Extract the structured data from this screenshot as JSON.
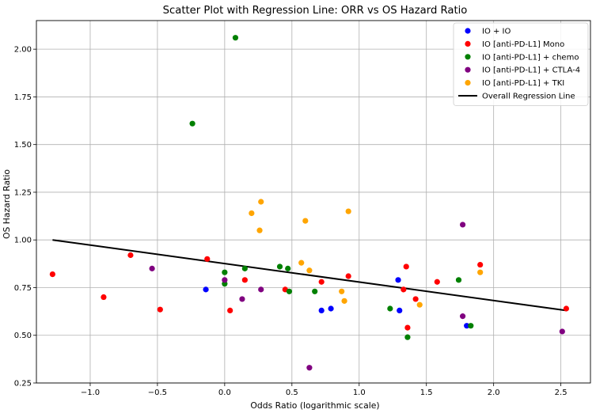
{
  "chart_data": {
    "type": "scatter",
    "title": "Scatter Plot with Regression Line: ORR vs OS Hazard Ratio",
    "xlabel": "Odds Ratio (logarithmic scale)",
    "ylabel": "OS Hazard Ratio",
    "xlim": [
      -1.4,
      2.72
    ],
    "ylim": [
      0.25,
      2.15
    ],
    "grid": true,
    "legend_position": "top-right",
    "xticks": [
      -1.0,
      -0.5,
      0.0,
      0.5,
      1.0,
      1.5,
      2.0,
      2.5
    ],
    "xtick_labels": [
      "−1.0",
      "−0.5",
      "0.0",
      "0.5",
      "1.0",
      "1.5",
      "2.0",
      "2.5"
    ],
    "yticks": [
      0.25,
      0.5,
      0.75,
      1.0,
      1.25,
      1.5,
      1.75,
      2.0
    ],
    "ytick_labels": [
      "0.25",
      "0.50",
      "0.75",
      "1.00",
      "1.25",
      "1.50",
      "1.75",
      "2.00"
    ],
    "series": [
      {
        "name": "IO + IO",
        "color": "#0000ff",
        "points": [
          [
            -0.14,
            0.74
          ],
          [
            0.72,
            0.63
          ],
          [
            0.79,
            0.64
          ],
          [
            1.29,
            0.79
          ],
          [
            1.3,
            0.63
          ],
          [
            1.8,
            0.55
          ]
        ]
      },
      {
        "name": "IO [anti-PD-L1] Mono",
        "color": "#ff0000",
        "points": [
          [
            -1.28,
            0.82
          ],
          [
            -0.9,
            0.7
          ],
          [
            -0.7,
            0.92
          ],
          [
            -0.48,
            0.635
          ],
          [
            -0.13,
            0.9
          ],
          [
            0.04,
            0.63
          ],
          [
            0.15,
            0.79
          ],
          [
            0.45,
            0.74
          ],
          [
            0.72,
            0.78
          ],
          [
            0.92,
            0.81
          ],
          [
            1.33,
            0.74
          ],
          [
            1.35,
            0.86
          ],
          [
            1.36,
            0.54
          ],
          [
            1.42,
            0.69
          ],
          [
            1.58,
            0.78
          ],
          [
            1.9,
            0.87
          ],
          [
            2.54,
            0.64
          ]
        ]
      },
      {
        "name": "IO [anti-PD-L1] + chemo",
        "color": "#008000",
        "points": [
          [
            0.08,
            2.06
          ],
          [
            -0.24,
            1.61
          ],
          [
            0.0,
            0.83
          ],
          [
            0.0,
            0.77
          ],
          [
            0.15,
            0.85
          ],
          [
            0.41,
            0.86
          ],
          [
            0.47,
            0.85
          ],
          [
            0.48,
            0.73
          ],
          [
            0.67,
            0.73
          ],
          [
            1.23,
            0.64
          ],
          [
            1.36,
            0.49
          ],
          [
            1.74,
            0.79
          ],
          [
            1.83,
            0.55
          ]
        ]
      },
      {
        "name": "IO [anti-PD-L1] + CTLA-4",
        "color": "#800080",
        "points": [
          [
            -0.54,
            0.85
          ],
          [
            0.0,
            0.79
          ],
          [
            0.13,
            0.69
          ],
          [
            0.27,
            0.74
          ],
          [
            0.63,
            0.33
          ],
          [
            1.77,
            1.08
          ],
          [
            1.77,
            0.6
          ],
          [
            2.51,
            0.52
          ]
        ]
      },
      {
        "name": "IO [anti-PD-L1] + TKI",
        "color": "#ffa500",
        "points": [
          [
            0.2,
            1.14
          ],
          [
            0.27,
            1.2
          ],
          [
            0.26,
            1.05
          ],
          [
            0.57,
            0.88
          ],
          [
            0.6,
            1.1
          ],
          [
            0.63,
            0.84
          ],
          [
            0.87,
            0.73
          ],
          [
            0.89,
            0.68
          ],
          [
            0.92,
            1.15
          ],
          [
            1.45,
            0.66
          ],
          [
            1.9,
            0.83
          ]
        ]
      }
    ],
    "regression_line": {
      "name": "Overall Regression Line",
      "color": "#000000",
      "x": [
        -1.28,
        2.54
      ],
      "y": [
        1.0,
        0.63
      ]
    }
  }
}
